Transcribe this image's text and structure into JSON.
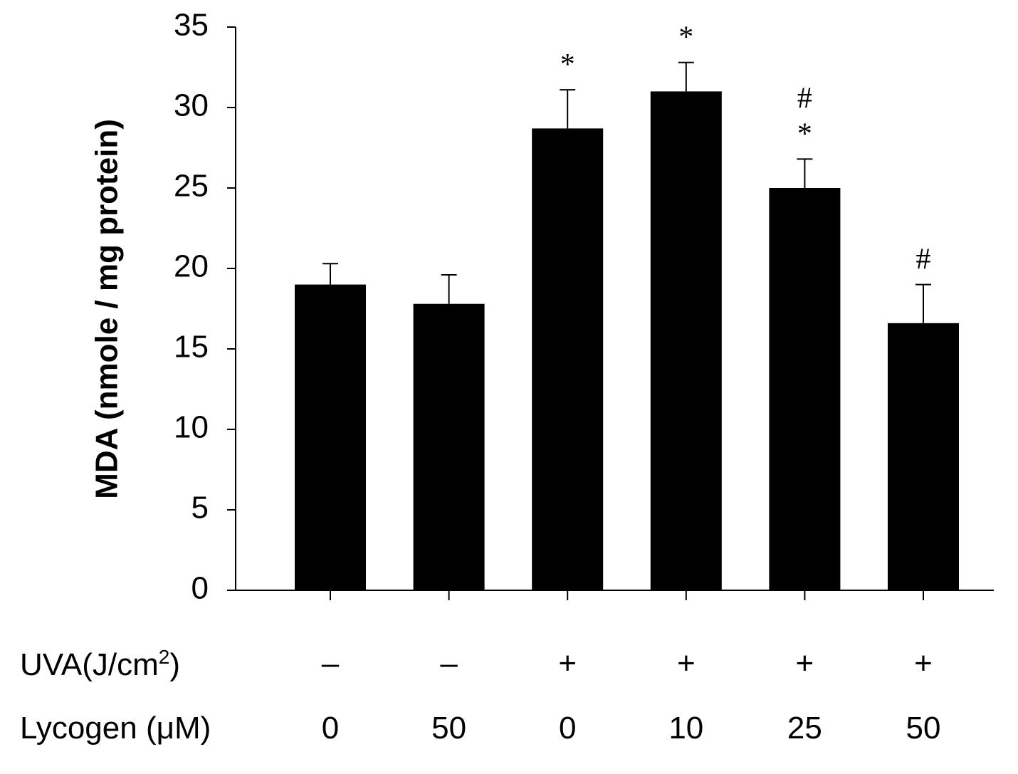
{
  "chart_data": {
    "type": "bar",
    "title": "",
    "xlabel": "",
    "ylabel": "MDA (nmole / mg protein)",
    "ylim": [
      0,
      35
    ],
    "y_ticks": [
      "0",
      "5",
      "10",
      "15",
      "20",
      "25",
      "30",
      "35"
    ],
    "grid": false,
    "legend": "none",
    "bar_color": "#000000",
    "conditions": {
      "uva_label": "UVA(J/cm",
      "uva_superscript": "2",
      "uva_label_close": ")",
      "uva_values": [
        "–",
        "–",
        "+",
        "+",
        "+",
        "+"
      ],
      "lycogen_label": "Lycogen (μM)",
      "lycogen_values": [
        "0",
        "50",
        "0",
        "10",
        "25",
        "50"
      ]
    },
    "values": [
      19.0,
      17.8,
      28.7,
      31.0,
      25.0,
      16.6
    ],
    "errors": [
      1.3,
      1.8,
      2.4,
      1.8,
      1.8,
      2.4
    ],
    "annotations": [
      [],
      [],
      [
        "*"
      ],
      [
        "*"
      ],
      [
        "#",
        "*"
      ],
      [
        "#"
      ]
    ]
  }
}
